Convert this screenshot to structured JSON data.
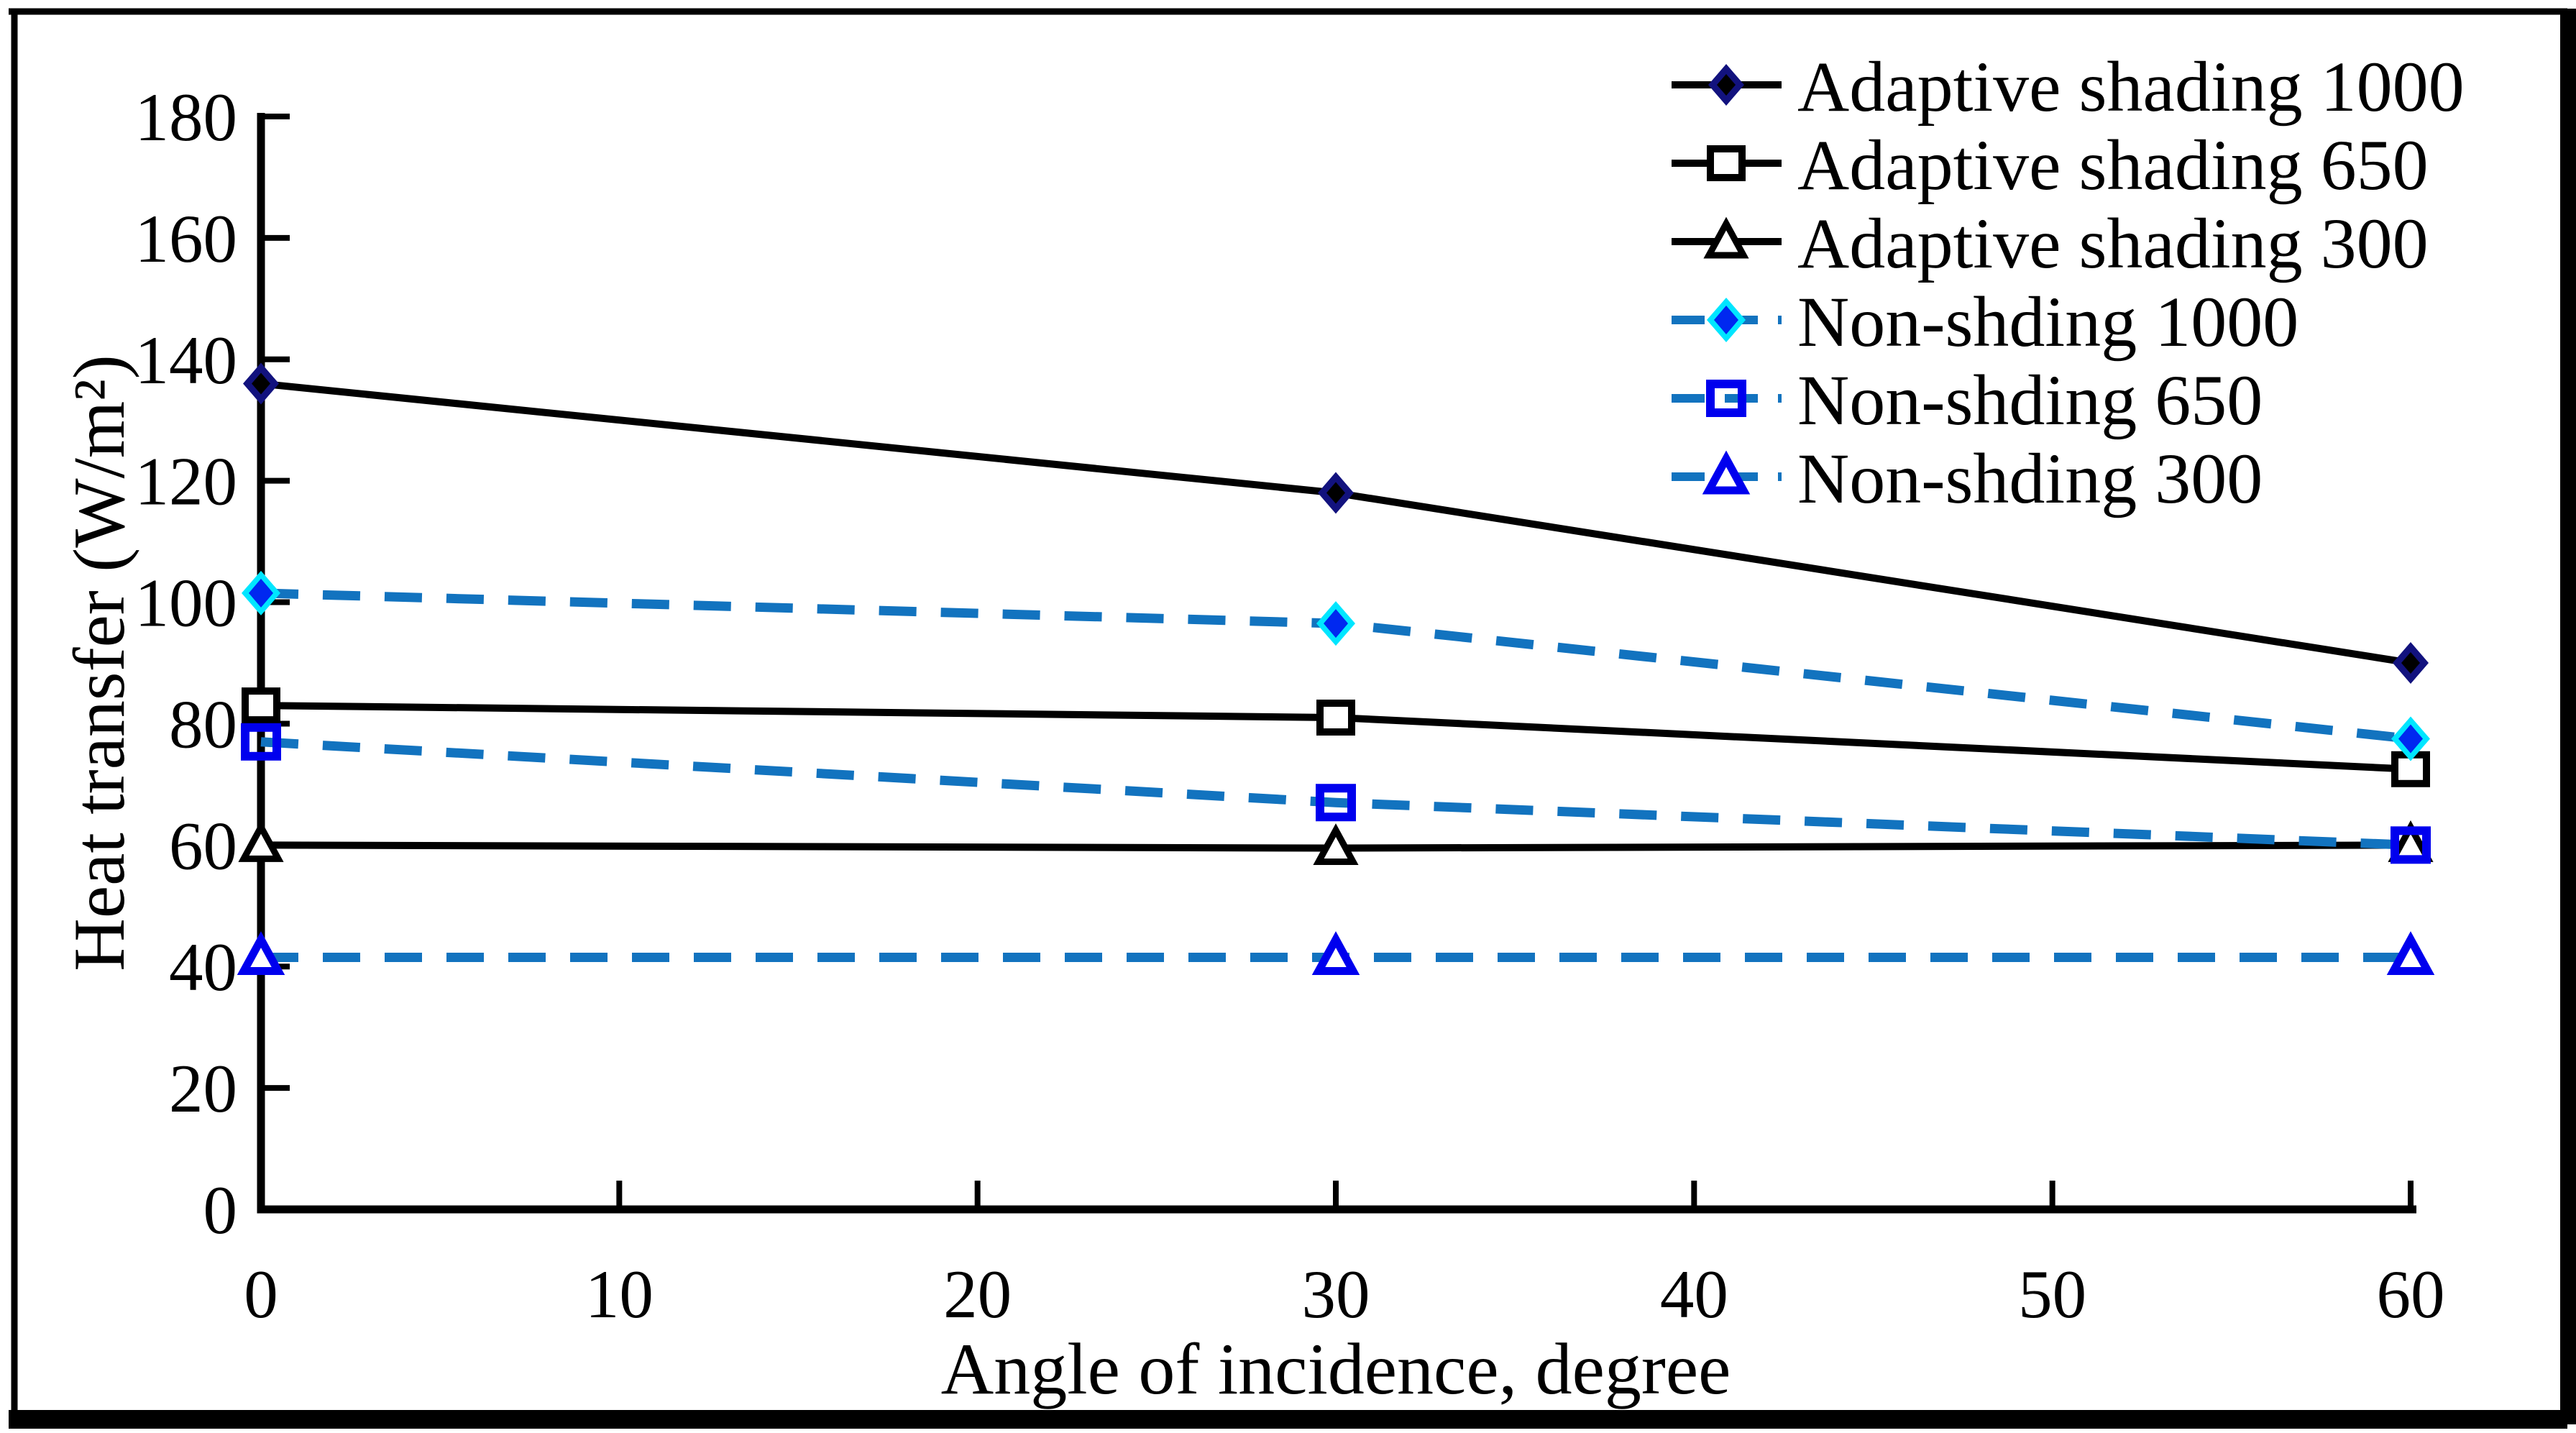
{
  "figure": {
    "background": "#ffffff",
    "border_color": "#000000"
  },
  "chart_data": {
    "type": "line",
    "title": "",
    "xlabel": "Angle of incidence, degree",
    "ylabel": "Heat transfer (W/m²)",
    "x": [
      0,
      30,
      60
    ],
    "xlim": [
      0,
      60
    ],
    "ylim": [
      0,
      180
    ],
    "x_ticks": [
      0,
      10,
      20,
      30,
      40,
      50,
      60
    ],
    "y_ticks": [
      0,
      20,
      40,
      60,
      80,
      100,
      120,
      140,
      160,
      180
    ],
    "grid": false,
    "legend_position": "top-right",
    "series": [
      {
        "name": "Adaptive shading 1000",
        "values": [
          136,
          118,
          90
        ],
        "line": "solid",
        "color": "#000000",
        "marker": "diamond-filled"
      },
      {
        "name": "Adaptive shading 650",
        "values": [
          83,
          81,
          72.5
        ],
        "line": "solid",
        "color": "#000000",
        "marker": "square-open-black"
      },
      {
        "name": "Adaptive shading 300",
        "values": [
          60,
          59.5,
          60
        ],
        "line": "solid",
        "color": "#000000",
        "marker": "triangle-open-black"
      },
      {
        "name": "Non-shding 1000",
        "values": [
          101.5,
          96.5,
          77.5
        ],
        "line": "dashed",
        "color": "#1273BF",
        "marker": "diamond-cyan"
      },
      {
        "name": "Non-shding 650",
        "values": [
          77,
          67,
          60
        ],
        "line": "dashed",
        "color": "#1273BF",
        "marker": "square-open-blue"
      },
      {
        "name": "Non-shding 300",
        "values": [
          41.5,
          41.5,
          41.5
        ],
        "line": "dashed",
        "color": "#1273BF",
        "marker": "triangle-open-blue"
      }
    ],
    "colors": {
      "solid_line": "#000000",
      "dashed_line": "#1273BF",
      "navy_diamond": "#12127E",
      "diamond_core": "#000000",
      "cyan_border": "#00E6FF",
      "diamond_blue": "#0028F0",
      "blue_marker": "#0000EE",
      "text": "#000000"
    }
  }
}
